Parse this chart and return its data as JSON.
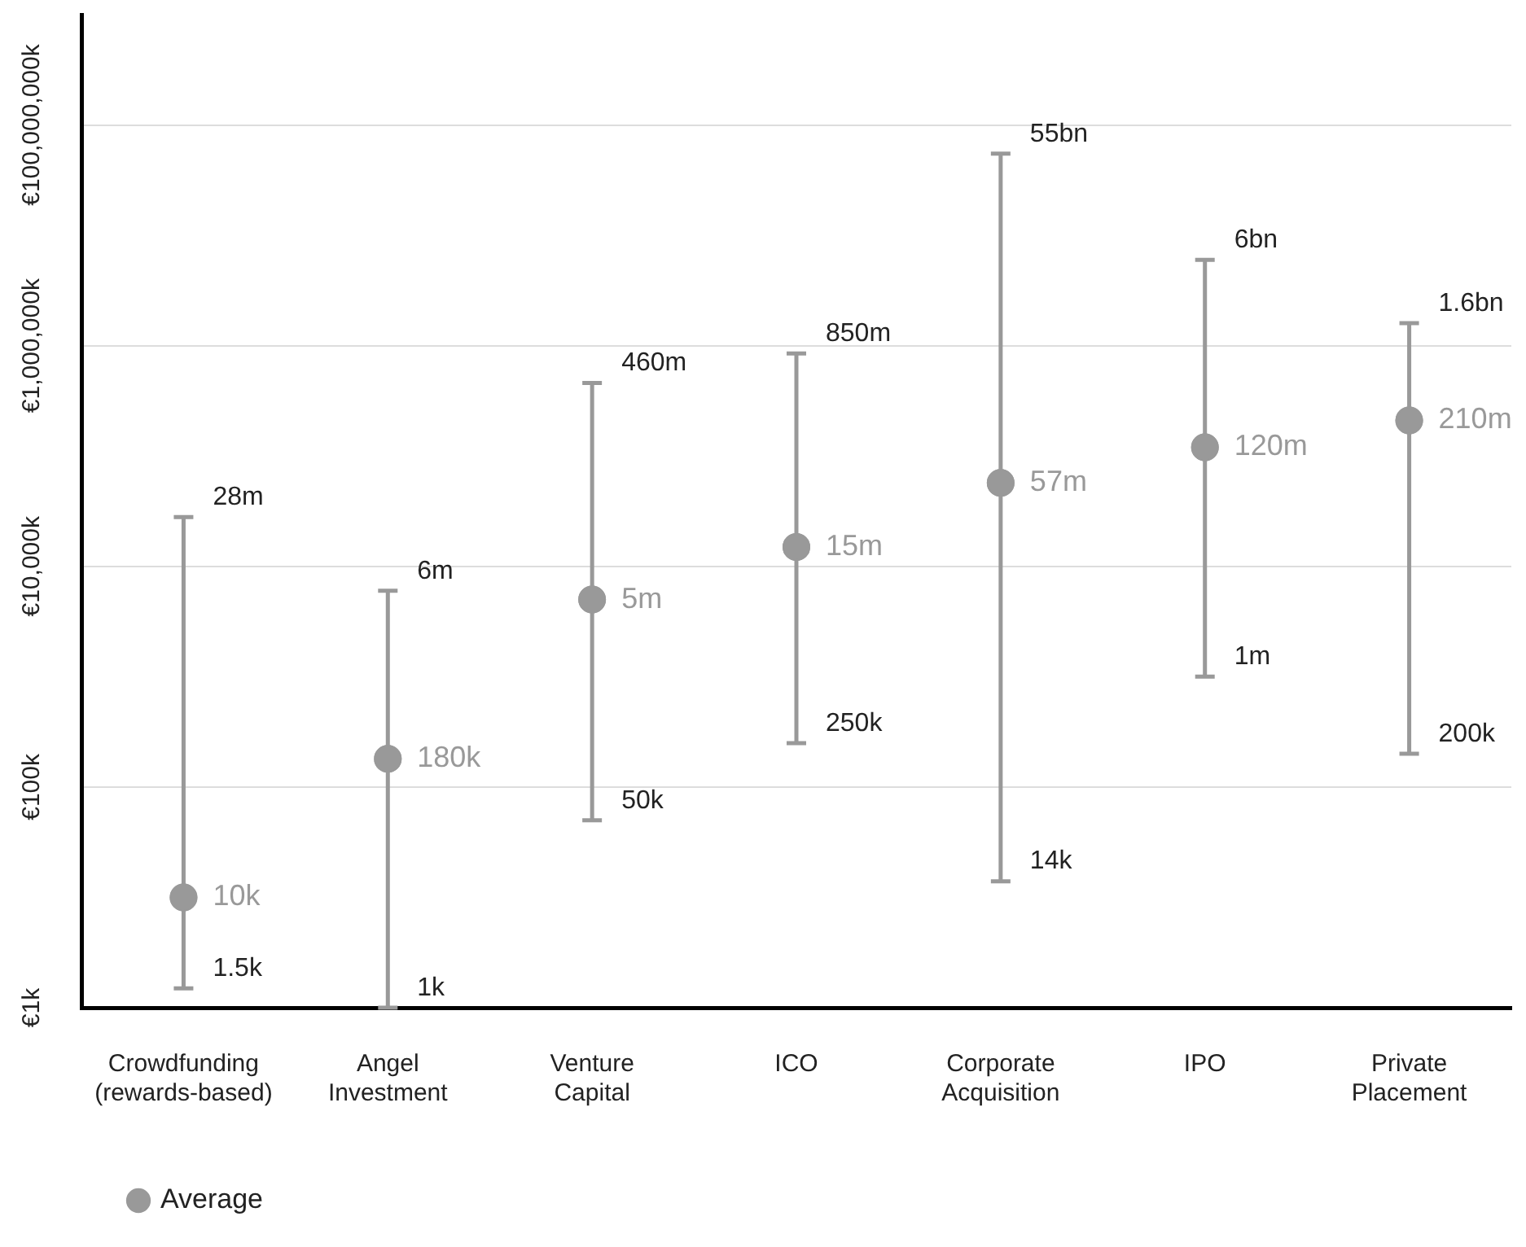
{
  "chart_data": {
    "type": "scatter",
    "categories": [
      "Crowdfunding\n(rewards-based)",
      "Angel\nInvestment",
      "Venture\nCapital",
      "ICO",
      "Corporate\nAcquisition",
      "IPO",
      "Private\nPlacement"
    ],
    "series": [
      {
        "name": "Average",
        "color": "#999999",
        "values": [
          10000,
          180000,
          5000000,
          15000000,
          57000000,
          120000000,
          210000000
        ],
        "errors": [
          [
            1500,
            28000000
          ],
          [
            1000,
            6000000
          ],
          [
            50000,
            460000000
          ],
          [
            250000,
            850000000
          ],
          [
            14000,
            55000000000
          ],
          [
            1000000,
            6000000000
          ],
          [
            200000,
            1600000000
          ]
        ],
        "value_labels": [
          "10k",
          "180k",
          "5m",
          "15m",
          "57m",
          "120m",
          "210m"
        ]
      }
    ],
    "annotations": [
      {
        "text": "28m",
        "x": "Crowdfunding\n(rewards-based)",
        "y": 28000000
      },
      {
        "text": "1.5k",
        "x": "Crowdfunding\n(rewards-based)",
        "y": 1500
      },
      {
        "text": "6m",
        "x": "Angel\nInvestment",
        "y": 6000000
      },
      {
        "text": "1k",
        "x": "Angel\nInvestment",
        "y": 1000
      },
      {
        "text": "460m",
        "x": "Venture\nCapital",
        "y": 460000000
      },
      {
        "text": "50k",
        "x": "Venture\nCapital",
        "y": 50000
      },
      {
        "text": "850m",
        "x": "ICO",
        "y": 850000000
      },
      {
        "text": "250k",
        "x": "ICO",
        "y": 250000
      },
      {
        "text": "55bn",
        "x": "Corporate\nAcquisition",
        "y": 55000000000
      },
      {
        "text": "14k",
        "x": "Corporate\nAcquisition",
        "y": 14000
      },
      {
        "text": "6bn",
        "x": "IPO",
        "y": 6000000000
      },
      {
        "text": "1m",
        "x": "IPO",
        "y": 1000000
      },
      {
        "text": "1.6bn",
        "x": "Private\nPlacement",
        "y": 1600000000
      },
      {
        "text": "200k",
        "x": "Private\nPlacement",
        "y": 200000
      }
    ],
    "log": "y",
    "ylim": [
      1000,
      1000000000000
    ],
    "yticks": [
      {
        "value": 1000,
        "label": "€1k"
      },
      {
        "value": 100000,
        "label": "€100k"
      },
      {
        "value": 10000000,
        "label": "€10,000k"
      },
      {
        "value": 1000000000,
        "label": "€1,000,000k"
      },
      {
        "value": 100000000000,
        "label": "€100,000,000k"
      }
    ],
    "grid": "y",
    "legend": "bottom left",
    "marker": "circle"
  }
}
